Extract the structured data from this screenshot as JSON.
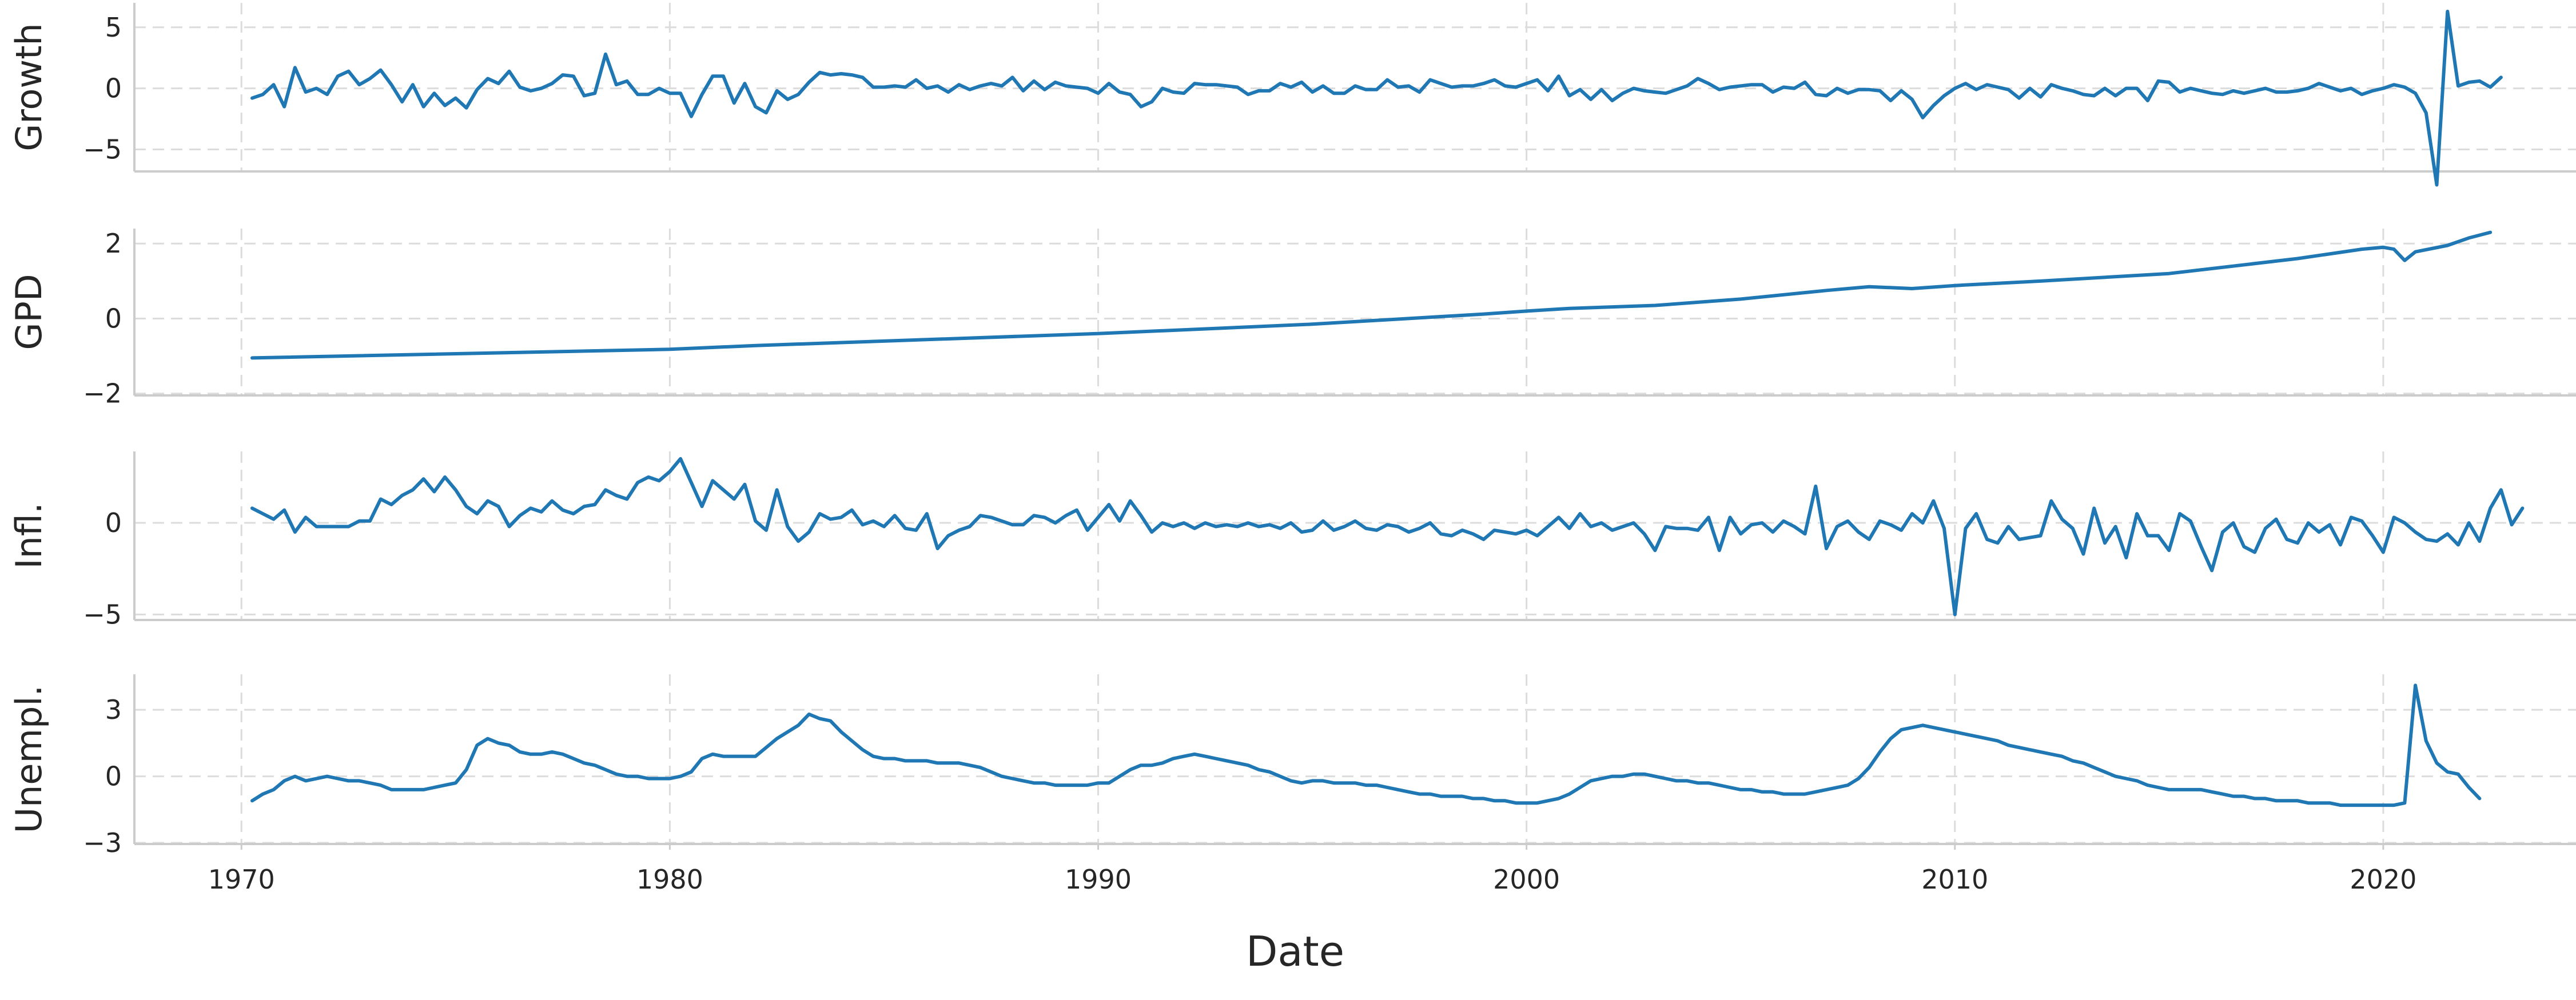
{
  "chart_data": {
    "type": "line",
    "xlabel": "Date",
    "x_ticks": [
      1970,
      1980,
      1990,
      2000,
      2010,
      2020
    ],
    "xlim": [
      1967.5,
      2024.5
    ],
    "grid": true,
    "line_color": "#1f77b4",
    "x_start": 1970.25,
    "x_step": 0.25,
    "panels": [
      {
        "ylabel": "Growth",
        "ylim": [
          -6.8,
          7.0
        ],
        "yticks": [
          -5,
          0,
          5
        ],
        "tick_labels": [
          "−5",
          "0",
          "5"
        ],
        "values": [
          -0.8,
          -0.5,
          0.3,
          -1.5,
          1.7,
          -0.3,
          0.0,
          -0.5,
          1.0,
          1.4,
          0.3,
          0.8,
          1.5,
          0.3,
          -1.1,
          0.3,
          -1.5,
          -0.4,
          -1.4,
          -0.8,
          -1.6,
          -0.1,
          0.8,
          0.4,
          1.4,
          0.1,
          -0.2,
          0.0,
          0.4,
          1.1,
          1.0,
          -0.6,
          -0.4,
          2.8,
          0.3,
          0.6,
          -0.5,
          -0.5,
          0.0,
          -0.4,
          -0.4,
          -2.3,
          -0.5,
          1.0,
          1.0,
          -1.2,
          0.4,
          -1.5,
          -2.0,
          -0.2,
          -0.9,
          -0.5,
          0.5,
          1.3,
          1.1,
          1.2,
          1.1,
          0.9,
          0.1,
          0.1,
          0.2,
          0.1,
          0.7,
          0.0,
          0.2,
          -0.3,
          0.3,
          -0.1,
          0.2,
          0.4,
          0.2,
          0.9,
          -0.2,
          0.6,
          -0.1,
          0.5,
          0.2,
          0.1,
          0.0,
          -0.4,
          0.4,
          -0.3,
          -0.5,
          -1.5,
          -1.1,
          0.0,
          -0.3,
          -0.4,
          0.4,
          0.3,
          0.3,
          0.2,
          0.1,
          -0.5,
          -0.2,
          -0.2,
          0.4,
          0.1,
          0.5,
          -0.3,
          0.2,
          -0.4,
          -0.4,
          0.2,
          -0.1,
          -0.1,
          0.7,
          0.1,
          0.2,
          -0.3,
          0.7,
          0.4,
          0.1,
          0.2,
          0.2,
          0.4,
          0.7,
          0.2,
          0.1,
          0.4,
          0.7,
          -0.2,
          1.0,
          -0.6,
          -0.1,
          -0.9,
          -0.1,
          -1.0,
          -0.4,
          0.0,
          -0.2,
          -0.3,
          -0.4,
          -0.1,
          0.2,
          0.8,
          0.4,
          -0.1,
          0.1,
          0.2,
          0.3,
          0.3,
          -0.3,
          0.1,
          0.0,
          0.5,
          -0.5,
          -0.6,
          0.0,
          -0.4,
          -0.1,
          -0.1,
          -0.2,
          -1.0,
          -0.2,
          -0.9,
          -2.4,
          -1.4,
          -0.6,
          0.0,
          0.4,
          -0.1,
          0.3,
          0.1,
          -0.1,
          -0.8,
          0.0,
          -0.7,
          0.3,
          0.0,
          -0.2,
          -0.5,
          -0.6,
          0.0,
          -0.6,
          0.0,
          0.0,
          -1.0,
          0.6,
          0.5,
          -0.3,
          0.0,
          -0.2,
          -0.4,
          -0.5,
          -0.2,
          -0.4,
          -0.2,
          0.0,
          -0.3,
          -0.3,
          -0.2,
          0.0,
          0.4,
          0.1,
          -0.2,
          0.0,
          -0.5,
          -0.2,
          0.0,
          0.3,
          0.1,
          -0.4,
          -2.0,
          -7.9,
          6.3,
          0.2,
          0.5,
          0.6,
          0.1,
          0.9
        ]
      },
      {
        "ylabel": "GPD",
        "ylim": [
          -2.05,
          2.4
        ],
        "yticks": [
          -2,
          0,
          2
        ],
        "tick_labels": [
          "−2",
          "0",
          "2"
        ],
        "path": [
          [
            1970.25,
            -1.05
          ],
          [
            1980,
            -0.82
          ],
          [
            1982,
            -0.72
          ],
          [
            1985,
            -0.6
          ],
          [
            1990,
            -0.4
          ],
          [
            1995,
            -0.15
          ],
          [
            1999,
            0.12
          ],
          [
            2000,
            0.2
          ],
          [
            2001,
            0.27
          ],
          [
            2003,
            0.35
          ],
          [
            2005,
            0.52
          ],
          [
            2007,
            0.75
          ],
          [
            2008,
            0.85
          ],
          [
            2009,
            0.8
          ],
          [
            2010,
            0.88
          ],
          [
            2012,
            1.0
          ],
          [
            2015,
            1.2
          ],
          [
            2018,
            1.6
          ],
          [
            2019.5,
            1.85
          ],
          [
            2020,
            1.9
          ],
          [
            2020.25,
            1.85
          ],
          [
            2020.5,
            1.55
          ],
          [
            2020.75,
            1.78
          ],
          [
            2021.5,
            1.95
          ],
          [
            2022,
            2.15
          ],
          [
            2022.5,
            2.3
          ]
        ]
      },
      {
        "ylabel": "Infl.",
        "ylim": [
          -5.3,
          3.9
        ],
        "yticks": [
          -5,
          0
        ],
        "tick_labels": [
          "−5",
          "0"
        ],
        "values": [
          0.8,
          0.5,
          0.2,
          0.7,
          -0.5,
          0.3,
          -0.2,
          -0.2,
          -0.2,
          -0.2,
          0.1,
          0.1,
          1.3,
          1.0,
          1.5,
          1.8,
          2.4,
          1.7,
          2.5,
          1.8,
          0.9,
          0.5,
          1.2,
          0.9,
          -0.2,
          0.4,
          0.8,
          0.6,
          1.2,
          0.7,
          0.5,
          0.9,
          1.0,
          1.8,
          1.5,
          1.3,
          2.2,
          2.5,
          2.3,
          2.8,
          3.5,
          2.2,
          0.9,
          2.3,
          1.8,
          1.3,
          2.1,
          0.1,
          -0.4,
          1.8,
          -0.2,
          -1.0,
          -0.5,
          0.5,
          0.2,
          0.3,
          0.7,
          -0.1,
          0.1,
          -0.2,
          0.4,
          -0.3,
          -0.4,
          0.5,
          -1.4,
          -0.7,
          -0.4,
          -0.2,
          0.4,
          0.3,
          0.1,
          -0.1,
          -0.1,
          0.4,
          0.3,
          0.0,
          0.4,
          0.7,
          -0.4,
          0.3,
          1.0,
          0.1,
          1.2,
          0.4,
          -0.5,
          0.0,
          -0.2,
          0.0,
          -0.3,
          0.0,
          -0.2,
          -0.1,
          -0.2,
          0.0,
          -0.2,
          -0.1,
          -0.3,
          0.0,
          -0.5,
          -0.4,
          0.1,
          -0.4,
          -0.2,
          0.1,
          -0.3,
          -0.4,
          -0.1,
          -0.2,
          -0.5,
          -0.3,
          0.0,
          -0.6,
          -0.7,
          -0.4,
          -0.6,
          -0.9,
          -0.4,
          -0.5,
          -0.6,
          -0.4,
          -0.7,
          -0.2,
          0.3,
          -0.3,
          0.5,
          -0.2,
          0.0,
          -0.4,
          -0.2,
          0.0,
          -0.6,
          -1.5,
          -0.2,
          -0.3,
          -0.3,
          -0.4,
          0.3,
          -1.5,
          0.3,
          -0.6,
          -0.1,
          0.0,
          -0.5,
          0.1,
          -0.2,
          -0.6,
          2.0,
          -1.4,
          -0.2,
          0.1,
          -0.5,
          -0.9,
          0.1,
          -0.1,
          -0.4,
          0.5,
          0.0,
          1.2,
          -0.3,
          -5.0,
          -0.3,
          0.5,
          -0.9,
          -1.1,
          -0.2,
          -0.9,
          -0.8,
          -0.7,
          1.2,
          0.2,
          -0.3,
          -1.7,
          0.8,
          -1.1,
          -0.2,
          -1.9,
          0.5,
          -0.7,
          -0.7,
          -1.5,
          0.5,
          0.1,
          -1.3,
          -2.6,
          -0.5,
          0.0,
          -1.3,
          -1.6,
          -0.3,
          0.2,
          -0.9,
          -1.1,
          0.0,
          -0.5,
          -0.1,
          -1.2,
          0.3,
          0.1,
          -0.7,
          -1.6,
          0.3,
          0.0,
          -0.5,
          -0.9,
          -1.0,
          -0.6,
          -1.2,
          0.0,
          -1.0,
          0.8,
          1.8,
          -0.1,
          0.8
        ]
      },
      {
        "ylabel": "Unempl.",
        "ylim": [
          -3.05,
          4.6
        ],
        "yticks": [
          -3,
          0,
          3
        ],
        "tick_labels": [
          "−3",
          "0",
          "3"
        ],
        "values": [
          -1.1,
          -0.8,
          -0.6,
          -0.2,
          0.0,
          -0.2,
          -0.1,
          0.0,
          -0.1,
          -0.2,
          -0.2,
          -0.3,
          -0.4,
          -0.6,
          -0.6,
          -0.6,
          -0.6,
          -0.5,
          -0.4,
          -0.3,
          0.3,
          1.4,
          1.7,
          1.5,
          1.4,
          1.1,
          1.0,
          1.0,
          1.1,
          1.0,
          0.8,
          0.6,
          0.5,
          0.3,
          0.1,
          0.0,
          0.0,
          -0.1,
          -0.1,
          -0.1,
          0.0,
          0.2,
          0.8,
          1.0,
          0.9,
          0.9,
          0.9,
          0.9,
          1.3,
          1.7,
          2.0,
          2.3,
          2.8,
          2.6,
          2.5,
          2.0,
          1.6,
          1.2,
          0.9,
          0.8,
          0.8,
          0.7,
          0.7,
          0.7,
          0.6,
          0.6,
          0.6,
          0.5,
          0.4,
          0.2,
          0.0,
          -0.1,
          -0.2,
          -0.3,
          -0.3,
          -0.4,
          -0.4,
          -0.4,
          -0.4,
          -0.3,
          -0.3,
          0.0,
          0.3,
          0.5,
          0.5,
          0.6,
          0.8,
          0.9,
          1.0,
          0.9,
          0.8,
          0.7,
          0.6,
          0.5,
          0.3,
          0.2,
          0.0,
          -0.2,
          -0.3,
          -0.2,
          -0.2,
          -0.3,
          -0.3,
          -0.3,
          -0.4,
          -0.4,
          -0.5,
          -0.6,
          -0.7,
          -0.8,
          -0.8,
          -0.9,
          -0.9,
          -0.9,
          -1.0,
          -1.0,
          -1.1,
          -1.1,
          -1.2,
          -1.2,
          -1.2,
          -1.1,
          -1.0,
          -0.8,
          -0.5,
          -0.2,
          -0.1,
          0.0,
          0.0,
          0.1,
          0.1,
          0.0,
          -0.1,
          -0.2,
          -0.2,
          -0.3,
          -0.3,
          -0.4,
          -0.5,
          -0.6,
          -0.6,
          -0.7,
          -0.7,
          -0.8,
          -0.8,
          -0.8,
          -0.7,
          -0.6,
          -0.5,
          -0.4,
          -0.1,
          0.4,
          1.1,
          1.7,
          2.1,
          2.2,
          2.3,
          2.2,
          2.1,
          2.0,
          1.9,
          1.8,
          1.7,
          1.6,
          1.4,
          1.3,
          1.2,
          1.1,
          1.0,
          0.9,
          0.7,
          0.6,
          0.4,
          0.2,
          0.0,
          -0.1,
          -0.2,
          -0.4,
          -0.5,
          -0.6,
          -0.6,
          -0.6,
          -0.6,
          -0.7,
          -0.8,
          -0.9,
          -0.9,
          -1.0,
          -1.0,
          -1.1,
          -1.1,
          -1.1,
          -1.2,
          -1.2,
          -1.2,
          -1.3,
          -1.3,
          -1.3,
          -1.3,
          -1.3,
          -1.3,
          -1.2,
          4.1,
          1.6,
          0.6,
          0.2,
          0.1,
          -0.5,
          -1.0
        ]
      }
    ]
  }
}
